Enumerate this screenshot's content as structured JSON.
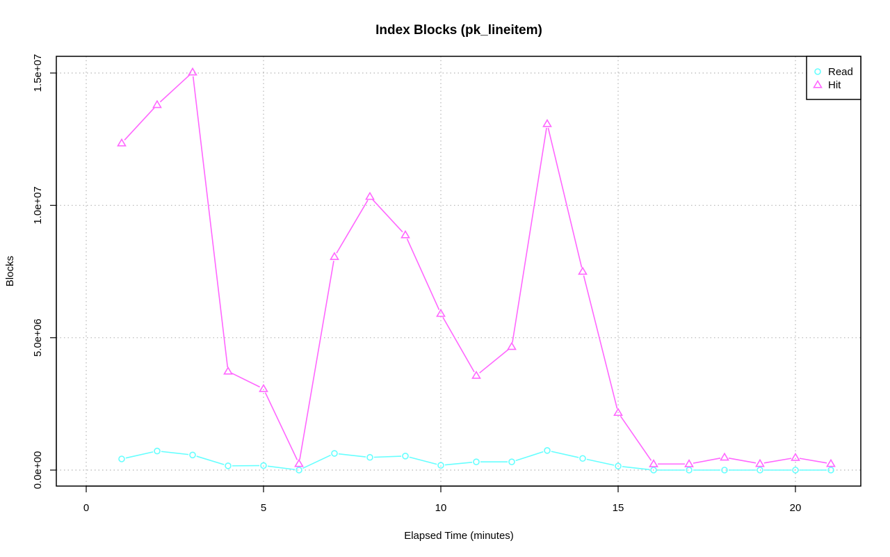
{
  "chart_data": {
    "type": "line",
    "title": "Index Blocks (pk_lineitem)",
    "xlabel": "Elapsed Time (minutes)",
    "ylabel": "Blocks",
    "xlim": [
      0,
      21
    ],
    "ylim": [
      0,
      15000000
    ],
    "x_ticks": [
      0,
      5,
      10,
      15,
      20
    ],
    "x_tick_labels": [
      "0",
      "5",
      "10",
      "15",
      "20"
    ],
    "y_ticks": [
      0,
      5000000,
      10000000,
      15000000
    ],
    "y_tick_labels": [
      "0.0e+00",
      "5.0e+06",
      "1.0e+07",
      "1.5e+07"
    ],
    "grid": true,
    "legend_position": "top-right",
    "x": [
      1,
      2,
      3,
      4,
      5,
      6,
      7,
      8,
      9,
      10,
      11,
      12,
      13,
      14,
      15,
      16,
      17,
      18,
      19,
      20,
      21
    ],
    "series": [
      {
        "name": "Read",
        "marker": "circle",
        "color": "#66ffff",
        "values": [
          420000,
          720000,
          570000,
          160000,
          170000,
          0,
          630000,
          480000,
          530000,
          180000,
          310000,
          310000,
          740000,
          440000,
          150000,
          0,
          0,
          0,
          0,
          0,
          0
        ]
      },
      {
        "name": "Hit",
        "marker": "triangle",
        "color": "#ff66ff",
        "values": [
          12350000,
          13800000,
          15030000,
          3730000,
          3070000,
          240000,
          8060000,
          10330000,
          8880000,
          5910000,
          3570000,
          4660000,
          13080000,
          7500000,
          2170000,
          230000,
          230000,
          480000,
          240000,
          470000,
          240000
        ]
      }
    ]
  }
}
